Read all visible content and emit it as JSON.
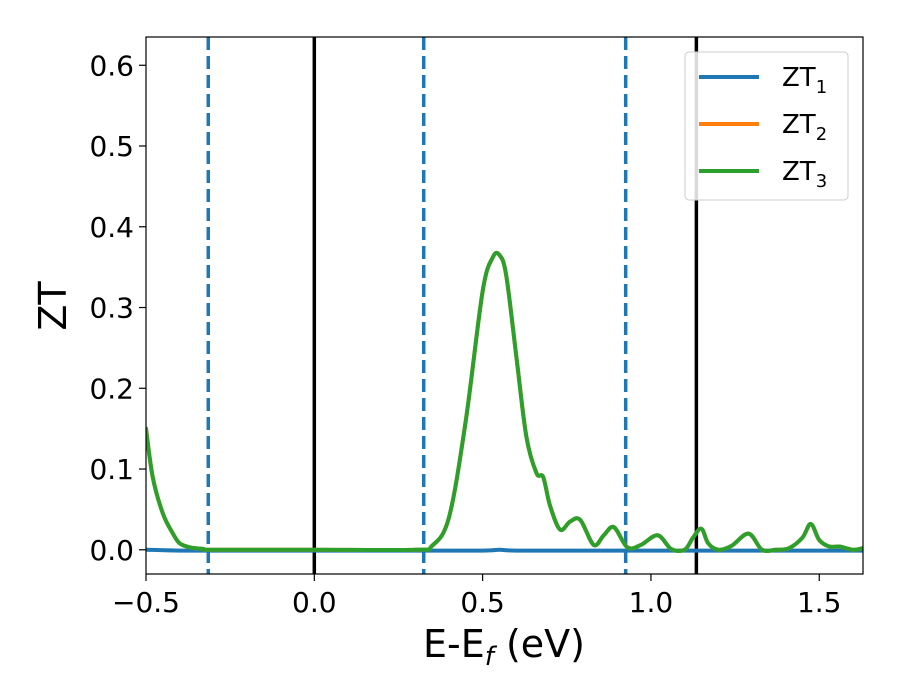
{
  "chart_data": {
    "type": "line",
    "xlabel": {
      "main": "E-E",
      "sub": "f",
      "unit": " (eV)"
    },
    "ylabel": "ZT",
    "xlim": [
      -0.5,
      1.63
    ],
    "ylim": [
      -0.03,
      0.635
    ],
    "xticks": [
      {
        "value": -0.5,
        "label": "−0.5"
      },
      {
        "value": 0.0,
        "label": "0.0"
      },
      {
        "value": 0.5,
        "label": "0.5"
      },
      {
        "value": 1.0,
        "label": "1.0"
      },
      {
        "value": 1.5,
        "label": "1.5"
      }
    ],
    "yticks": [
      {
        "value": 0.0,
        "label": "0.0"
      },
      {
        "value": 0.1,
        "label": "0.1"
      },
      {
        "value": 0.2,
        "label": "0.2"
      },
      {
        "value": 0.3,
        "label": "0.3"
      },
      {
        "value": 0.4,
        "label": "0.4"
      },
      {
        "value": 0.5,
        "label": "0.5"
      },
      {
        "value": 0.6,
        "label": "0.6"
      }
    ],
    "grid": false,
    "legend": {
      "position": "top-right",
      "entries": [
        {
          "main": "ZT",
          "sub": "1",
          "color": "#1f77b4"
        },
        {
          "main": "ZT",
          "sub": "2",
          "color": "#ff7f0e"
        },
        {
          "main": "ZT",
          "sub": "3",
          "color": "#2ca02c"
        }
      ]
    },
    "vlines": [
      {
        "x": -0.315,
        "style": "dashed",
        "color": "#1f77b4"
      },
      {
        "x": 0.0,
        "style": "solid",
        "color": "#000000"
      },
      {
        "x": 0.325,
        "style": "dashed",
        "color": "#1f77b4"
      },
      {
        "x": 0.925,
        "style": "dashed",
        "color": "#1f77b4"
      },
      {
        "x": 1.135,
        "style": "solid",
        "color": "#000000"
      }
    ],
    "series": [
      {
        "name": "ZT1",
        "color": "#1f77b4",
        "x": [
          -0.5,
          -0.4,
          -0.3,
          0.0,
          0.3,
          0.5,
          0.55,
          0.6,
          0.8,
          1.0,
          1.2,
          1.4,
          1.63
        ],
        "y": [
          0.0,
          -0.001,
          -0.001,
          -0.001,
          -0.001,
          -0.001,
          0.0,
          -0.001,
          -0.001,
          -0.001,
          -0.001,
          -0.001,
          -0.001
        ]
      },
      {
        "name": "ZT2",
        "color": "#ff7f0e",
        "x": [
          -0.5,
          -0.48,
          -0.45,
          -0.42,
          -0.4,
          -0.37,
          -0.33,
          -0.3,
          0.0,
          0.3,
          0.35,
          0.4,
          0.45,
          0.5,
          0.53,
          0.55,
          0.57,
          0.6,
          0.63,
          0.66,
          0.68,
          0.7,
          0.73,
          0.76,
          0.79,
          0.83,
          0.86,
          0.89,
          0.93,
          0.97,
          1.02,
          1.06,
          1.1,
          1.125,
          1.15,
          1.17,
          1.2,
          1.24,
          1.29,
          1.33,
          1.37,
          1.41,
          1.45,
          1.475,
          1.5,
          1.53,
          1.56,
          1.6,
          1.63
        ],
        "y": [
          0.15,
          0.09,
          0.045,
          0.02,
          0.008,
          0.003,
          0.001,
          0.0,
          0.0,
          0.0,
          0.005,
          0.04,
          0.16,
          0.32,
          0.362,
          0.365,
          0.34,
          0.24,
          0.14,
          0.095,
          0.09,
          0.055,
          0.025,
          0.035,
          0.037,
          0.006,
          0.018,
          0.028,
          0.003,
          0.006,
          0.018,
          0.001,
          0.0,
          0.015,
          0.026,
          0.008,
          0.0,
          0.005,
          0.02,
          0.0,
          0.0,
          0.002,
          0.015,
          0.032,
          0.012,
          0.004,
          0.004,
          0.0,
          0.002
        ]
      },
      {
        "name": "ZT3",
        "color": "#2ca02c",
        "x": [
          -0.5,
          -0.48,
          -0.45,
          -0.42,
          -0.4,
          -0.37,
          -0.33,
          -0.3,
          0.0,
          0.3,
          0.35,
          0.4,
          0.45,
          0.5,
          0.53,
          0.55,
          0.57,
          0.6,
          0.63,
          0.66,
          0.68,
          0.7,
          0.73,
          0.76,
          0.79,
          0.83,
          0.86,
          0.89,
          0.93,
          0.97,
          1.02,
          1.06,
          1.1,
          1.125,
          1.15,
          1.17,
          1.2,
          1.24,
          1.29,
          1.33,
          1.37,
          1.41,
          1.45,
          1.475,
          1.5,
          1.53,
          1.56,
          1.6,
          1.63
        ],
        "y": [
          0.15,
          0.09,
          0.045,
          0.02,
          0.008,
          0.003,
          0.001,
          0.0,
          0.0,
          0.0,
          0.005,
          0.04,
          0.16,
          0.32,
          0.362,
          0.365,
          0.34,
          0.24,
          0.14,
          0.095,
          0.09,
          0.055,
          0.025,
          0.035,
          0.037,
          0.006,
          0.018,
          0.028,
          0.003,
          0.006,
          0.018,
          0.001,
          0.0,
          0.015,
          0.026,
          0.008,
          0.0,
          0.005,
          0.02,
          0.0,
          0.0,
          0.002,
          0.015,
          0.032,
          0.012,
          0.004,
          0.004,
          0.0,
          0.002
        ]
      }
    ]
  }
}
